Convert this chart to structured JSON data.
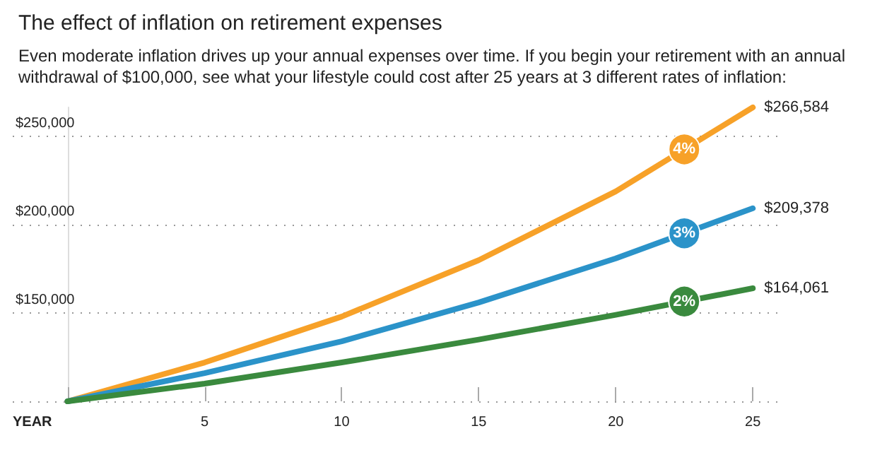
{
  "chart_data": {
    "type": "line",
    "title": "The effect of inflation on retirement expenses",
    "subtitle": "Even moderate inflation drives up your annual expenses over time. If you begin your retirement with an annual withdrawal of $100,000, see what your lifestyle could cost after 25 years at 3 different rates of inflation:",
    "xlabel": "YEAR",
    "x": [
      0,
      5,
      10,
      15,
      20,
      25
    ],
    "series": [
      {
        "name": "4%",
        "color": "#f7a128",
        "values": [
          100000,
          122000,
          148000,
          180000,
          219000,
          266584
        ],
        "value_labels": [
          null,
          null,
          null,
          null,
          null,
          "$266,584"
        ]
      },
      {
        "name": "3%",
        "color": "#2b93c9",
        "values": [
          100000,
          116000,
          134000,
          156000,
          181000,
          209378
        ],
        "value_labels": [
          null,
          null,
          null,
          null,
          null,
          "$209,378"
        ]
      },
      {
        "name": "2%",
        "color": "#3a8a3e",
        "values": [
          100000,
          110000,
          122000,
          135000,
          149000,
          164061
        ],
        "value_labels": [
          null,
          null,
          null,
          null,
          null,
          "$164,061"
        ]
      }
    ],
    "xlim": [
      -2,
      26
    ],
    "xticks": [
      {
        "value": 0,
        "label": null
      },
      5,
      10,
      15,
      20,
      25
    ],
    "ylim": [
      100000,
      266584
    ],
    "yticks": [
      {
        "value": 100000,
        "label": null
      },
      {
        "value": 150000,
        "label": "$150,000"
      },
      {
        "value": 200000,
        "label": "$200,000"
      },
      {
        "value": 250000,
        "label": "$250,000"
      }
    ],
    "grid": "y",
    "legend": false,
    "marker": "none",
    "line_style": "solid"
  }
}
